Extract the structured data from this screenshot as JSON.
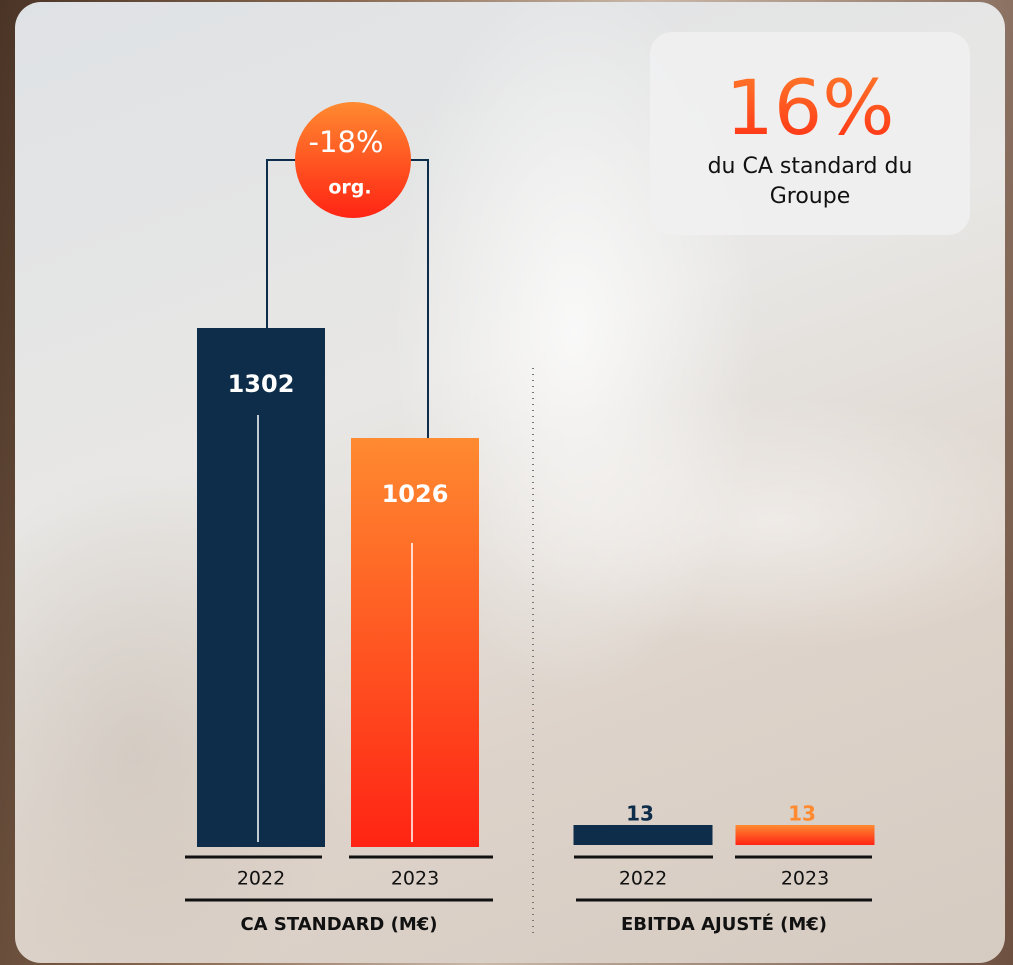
{
  "chart_data": [
    {
      "type": "bar",
      "title": "CA STANDARD (M€)",
      "categories": [
        "2022",
        "2023"
      ],
      "values": [
        1302,
        1026
      ],
      "colors": [
        "#0d2d4a",
        "#ff8a30"
      ],
      "annotation": "-18%",
      "annotation_note": "org."
    },
    {
      "type": "bar",
      "title": "EBITDA AJUSTÉ (M€)",
      "categories": [
        "2022",
        "2023"
      ],
      "values": [
        13,
        13
      ],
      "colors": [
        "#0d2d4a",
        "#ff8a30"
      ]
    }
  ],
  "callout": {
    "headline": "16%",
    "text": "du CA standard du Groupe"
  }
}
